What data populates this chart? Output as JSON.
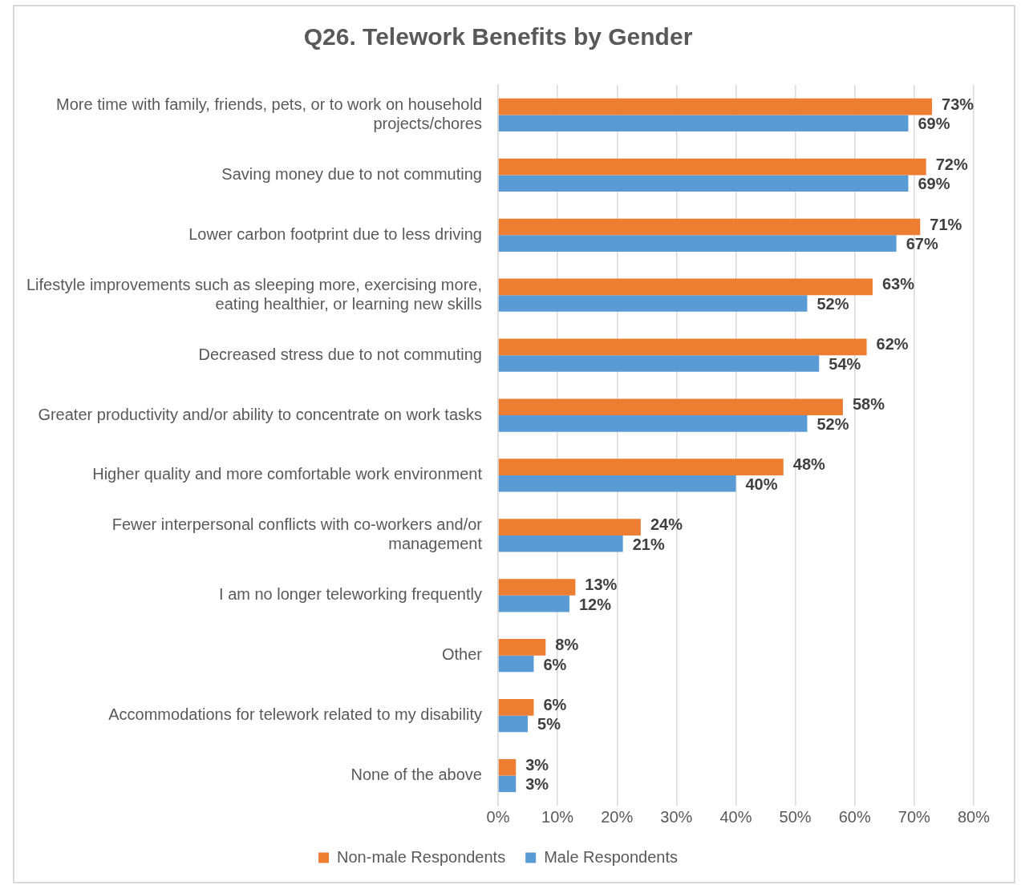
{
  "chart_data": {
    "type": "bar",
    "orientation": "horizontal",
    "title": "Q26. Telework Benefits by Gender",
    "categories": [
      "More time with family, friends, pets, or to work on household projects/chores",
      "Saving money due to not commuting",
      "Lower carbon footprint due to less driving",
      "Lifestyle improvements such as sleeping more, exercising more, eating healthier, or learning new skills",
      "Decreased stress due to not commuting",
      "Greater productivity and/or ability to concentrate on work tasks",
      "Higher quality and more comfortable work environment",
      "Fewer interpersonal conflicts with co-workers and/or management",
      "I am no longer teleworking frequently",
      "Other",
      "Accommodations for telework related to my disability",
      "None of the above"
    ],
    "series": [
      {
        "name": "Non-male Respondents",
        "color": "#ed7d31",
        "values": [
          73,
          72,
          71,
          63,
          62,
          58,
          48,
          24,
          13,
          8,
          6,
          3
        ],
        "value_labels": [
          "73%",
          "72%",
          "71%",
          "63%",
          "62%",
          "58%",
          "48%",
          "24%",
          "13%",
          "8%",
          "6%",
          "3%"
        ]
      },
      {
        "name": "Male Respondents",
        "color": "#5b9bd5",
        "values": [
          69,
          69,
          67,
          52,
          54,
          52,
          40,
          21,
          12,
          6,
          5,
          3
        ],
        "value_labels": [
          "69%",
          "69%",
          "67%",
          "52%",
          "54%",
          "52%",
          "40%",
          "21%",
          "12%",
          "6%",
          "5%",
          "3%"
        ]
      }
    ],
    "xlim": [
      0,
      80
    ],
    "xticks": [
      {
        "value": 0,
        "label": "0%"
      },
      {
        "value": 10,
        "label": "10%"
      },
      {
        "value": 20,
        "label": "20%"
      },
      {
        "value": 30,
        "label": "30%"
      },
      {
        "value": 40,
        "label": "40%"
      },
      {
        "value": 50,
        "label": "50%"
      },
      {
        "value": 60,
        "label": "60%"
      },
      {
        "value": 70,
        "label": "70%"
      },
      {
        "value": 80,
        "label": "80%"
      }
    ],
    "grid": "x",
    "legend": "bottom"
  }
}
